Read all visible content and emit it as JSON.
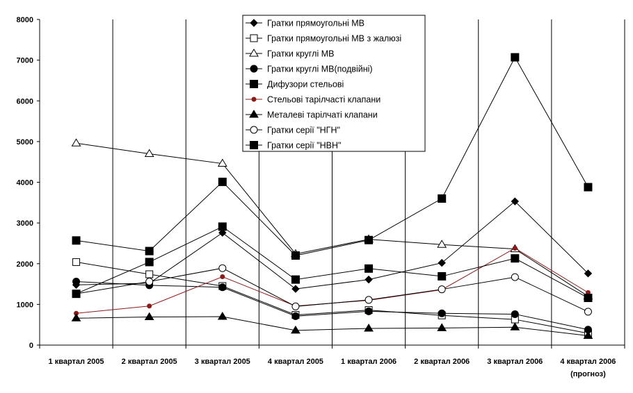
{
  "chart_data": {
    "type": "line",
    "title": "",
    "xlabel": "",
    "ylabel": "",
    "ylim": [
      0,
      8000
    ],
    "yticks": [
      0,
      1000,
      2000,
      3000,
      4000,
      5000,
      6000,
      7000,
      8000
    ],
    "grid": "vertical",
    "legend_position": "top-center",
    "categories": [
      [
        "1 квартал 2005"
      ],
      [
        "2 квартал 2005"
      ],
      [
        "3 квартал 2005"
      ],
      [
        "4 квартал 2005"
      ],
      [
        "1 квартал 2006"
      ],
      [
        "2 квартал 2006"
      ],
      [
        "3 квартал 2006"
      ],
      [
        "4 квартал 2006",
        "(прогноз)"
      ]
    ],
    "series": [
      {
        "name": "Гратки прямоугольні МВ",
        "marker": "diamond",
        "color": "#000000",
        "values": [
          1480,
          1520,
          2760,
          1380,
          1610,
          2020,
          3530,
          1760
        ]
      },
      {
        "name": "Гратки прямоугольні МВ з жалюзі",
        "marker": "square-open",
        "color": "#000000",
        "values": [
          2040,
          1740,
          1450,
          740,
          860,
          730,
          630,
          290
        ]
      },
      {
        "name": "Гратки круглі МВ",
        "marker": "triangle-open",
        "color": "#000000",
        "values": [
          4960,
          4700,
          4460,
          2240,
          2600,
          2470,
          2360,
          1200
        ]
      },
      {
        "name": "Гратки круглі МВ(подвійні)",
        "marker": "circle",
        "color": "#000000",
        "values": [
          1560,
          1470,
          1420,
          710,
          830,
          780,
          760,
          380
        ]
      },
      {
        "name": "Дифузори стельові",
        "marker": "square",
        "color": "#000000",
        "values": [
          2570,
          2310,
          4010,
          2200,
          2580,
          3600,
          7070,
          3880
        ]
      },
      {
        "name": "Стельові тарілчасті клапани",
        "marker": "dot",
        "color": "#8b1a1a",
        "values": [
          780,
          960,
          1680,
          960,
          1100,
          1360,
          2380,
          1290
        ]
      },
      {
        "name": "Металеві тарілчаті клапани",
        "marker": "triangle",
        "color": "#000000",
        "values": [
          660,
          690,
          700,
          360,
          410,
          420,
          440,
          230
        ]
      },
      {
        "name": "Гратки серії \"НГН\"",
        "marker": "circle-open",
        "color": "#000000",
        "values": [
          1260,
          1560,
          1890,
          950,
          1110,
          1370,
          1670,
          820
        ]
      },
      {
        "name": "Гратки серії \"НВН\"",
        "marker": "square",
        "color": "#000000",
        "values": [
          1260,
          2040,
          2910,
          1610,
          1880,
          1690,
          2130,
          1160
        ]
      }
    ]
  }
}
